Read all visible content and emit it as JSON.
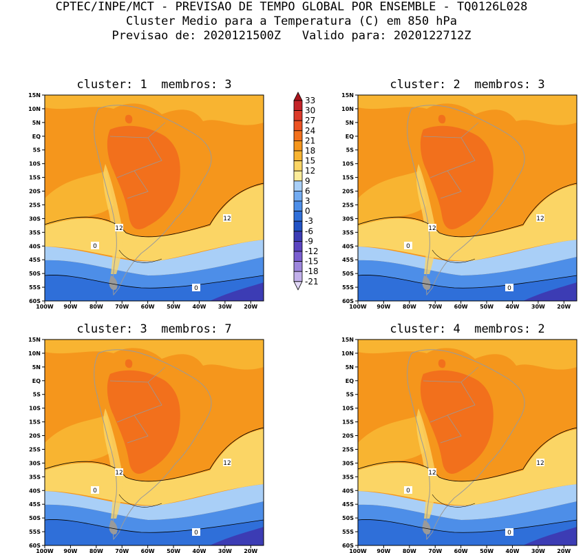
{
  "header": {
    "line1": "CPTEC/INPE/MCT - PREVISAO DE TEMPO GLOBAL POR ENSEMBLE - TQ0126L028",
    "line2": "Cluster Medio para a Temperatura (C) em 850 hPa",
    "line3": "Previsao de: 2020121500Z   Valido para: 2020122712Z"
  },
  "panels": [
    {
      "title": "cluster: 1  membros: 3",
      "contour_labels": [
        "12",
        "12",
        "0",
        "0"
      ]
    },
    {
      "title": "cluster: 2  membros: 3",
      "contour_labels": [
        "12",
        "12",
        "0",
        "0"
      ]
    },
    {
      "title": "cluster: 3  membros: 7",
      "contour_labels": [
        "12",
        "12",
        "0",
        "0"
      ]
    },
    {
      "title": "cluster: 4  membros: 2",
      "contour_labels": [
        "12",
        "12",
        "0",
        "0"
      ]
    }
  ],
  "lat_ticks": [
    "15N",
    "10N",
    "5N",
    "EQ",
    "5S",
    "10S",
    "15S",
    "20S",
    "25S",
    "30S",
    "35S",
    "40S",
    "45S",
    "50S",
    "55S",
    "60S"
  ],
  "lon_ticks": [
    "100W",
    "90W",
    "80W",
    "70W",
    "60W",
    "50W",
    "40W",
    "30W",
    "20W"
  ],
  "colorbar": {
    "labels": [
      "33",
      "30",
      "27",
      "24",
      "21",
      "18",
      "15",
      "12",
      "9",
      "6",
      "3",
      "0",
      "-3",
      "-6",
      "-9",
      "-12",
      "-15",
      "-18",
      "-21"
    ],
    "colors": [
      "#a8141c",
      "#c42328",
      "#dc3a2a",
      "#ec5222",
      "#f2701c",
      "#f5961c",
      "#f8b431",
      "#fbd565",
      "#fcec9a",
      "#a9cff7",
      "#73acf2",
      "#4d8ee8",
      "#2f6fd9",
      "#2152c4",
      "#3c3cb4",
      "#5b44c0",
      "#7a5ed0",
      "#9d86dc",
      "#c2b0ea",
      "#e2d8f6"
    ]
  }
}
